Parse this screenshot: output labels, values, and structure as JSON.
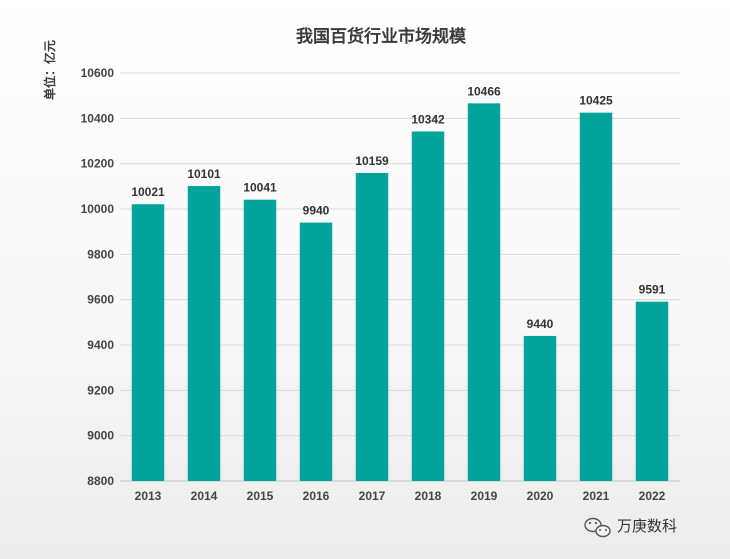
{
  "chart_data": {
    "type": "bar",
    "title": "我国百货行业市场规模",
    "ylabel": "单位：亿元",
    "xlabel": "",
    "categories": [
      "2013",
      "2014",
      "2015",
      "2016",
      "2017",
      "2018",
      "2019",
      "2020",
      "2021",
      "2022"
    ],
    "values": [
      10021,
      10101,
      10041,
      9940,
      10159,
      10342,
      10466,
      9440,
      10425,
      9591
    ],
    "ylim": [
      8800,
      10600
    ],
    "yticks": [
      8800,
      9000,
      9200,
      9400,
      9600,
      9800,
      10000,
      10200,
      10400,
      10600
    ],
    "grid": true,
    "bar_color": "#00a39a"
  },
  "watermark": {
    "text": "万庚数科",
    "icon": "wechat-icon"
  }
}
